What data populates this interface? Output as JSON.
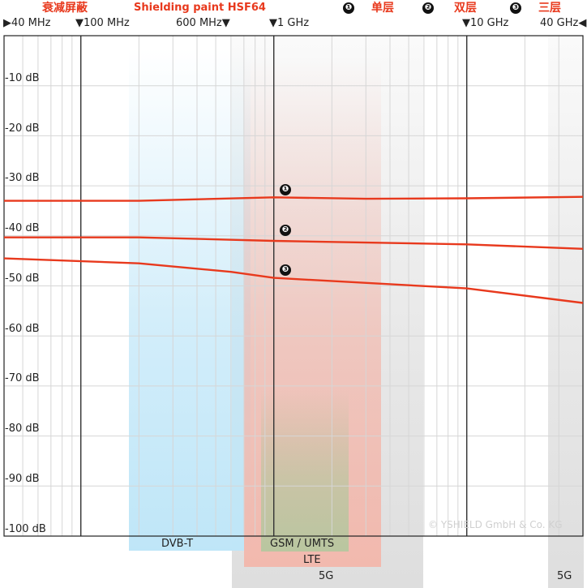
{
  "header": {
    "title_cn": "衰减屏蔽",
    "product": "Shielding paint HSF64",
    "legend": [
      {
        "num": "❶",
        "label": "单层"
      },
      {
        "num": "❷",
        "label": "双层"
      },
      {
        "num": "❸",
        "label": "三层"
      }
    ]
  },
  "top_ticks": [
    "▶40 MHz",
    "▼100 MHz",
    "600 MHz▼",
    "▼1 GHz",
    "▼10 GHz",
    "40 GHz◀"
  ],
  "copyright": "© YSHIELD GmbH & Co. KG",
  "colors": {
    "curve": "#e8391d",
    "dvbt": "#bfe6f8",
    "gsm": "#f2b9ae",
    "lte": "#b9c6a0",
    "fiveg": "#dedede"
  },
  "chart_data": {
    "type": "line",
    "x_scale": "log",
    "xlim_mhz": [
      40,
      40000
    ],
    "ylim_db": [
      -100,
      0
    ],
    "y_ticks": [
      "-10 dB",
      "-20 dB",
      "-30 dB",
      "-40 dB",
      "-50 dB",
      "-60 dB",
      "-70 dB",
      "-80 dB",
      "-90 dB",
      "-100 dB"
    ],
    "grid": true,
    "series": [
      {
        "name": "❶",
        "x_mhz": [
          40,
          200,
          1000,
          3000,
          10000,
          40000
        ],
        "y_db": [
          -33,
          -33,
          -32.3,
          -32.6,
          -32.5,
          -32.2
        ]
      },
      {
        "name": "❷",
        "x_mhz": [
          40,
          200,
          1000,
          10000,
          40000
        ],
        "y_db": [
          -40.3,
          -40.3,
          -41,
          -41.7,
          -42.6
        ]
      },
      {
        "name": "❸",
        "x_mhz": [
          40,
          200,
          600,
          1000,
          10000,
          40000
        ],
        "y_db": [
          -44.5,
          -45.5,
          -47.2,
          -48.4,
          -50.5,
          -53.4
        ]
      }
    ],
    "bands": [
      {
        "label": "DVB-T"
      },
      {
        "label": "GSM / UMTS"
      },
      {
        "label": "LTE"
      },
      {
        "label": "5G"
      },
      {
        "label": "5G"
      }
    ]
  }
}
